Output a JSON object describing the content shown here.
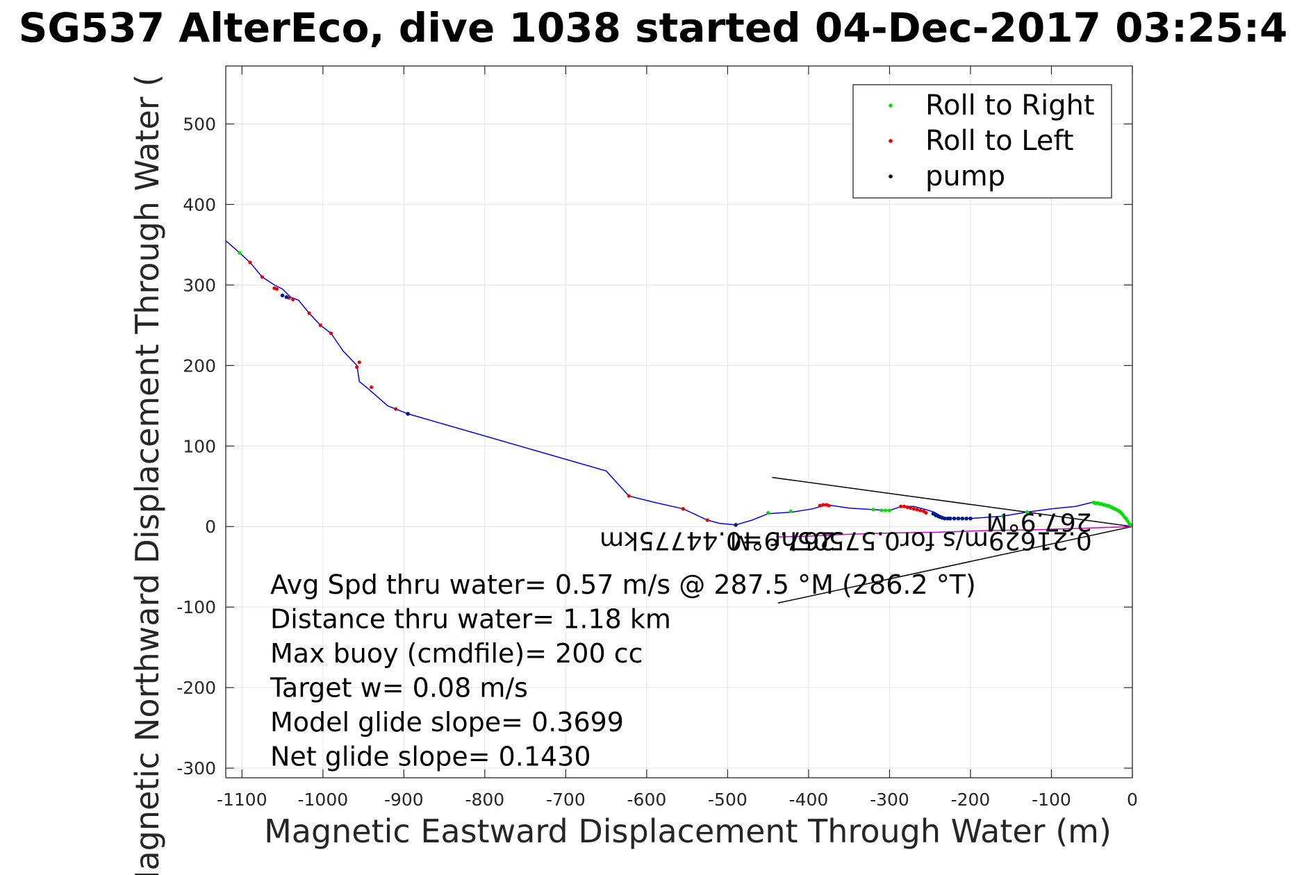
{
  "chart_data": {
    "type": "line",
    "title": "SG537 AlterEco, dive 1038 started 04-Dec-2017 03:25:4",
    "xlabel": "Magnetic Eastward Displacement Through Water (m)",
    "ylabel": "Magnetic Northward Displacement Through Water (",
    "xlim": [
      -1120,
      0
    ],
    "ylim": [
      -312,
      572
    ],
    "xticks": [
      -1100,
      -1000,
      -900,
      -800,
      -700,
      -600,
      -500,
      -400,
      -300,
      -200,
      -100,
      0
    ],
    "xtick_labels": [
      "-1100",
      "-1000",
      "-900",
      "-800",
      "-700",
      "-600",
      "-500",
      "-400",
      "-300",
      "-200",
      "-100",
      "0"
    ],
    "yticks": [
      -300,
      -200,
      -100,
      0,
      100,
      200,
      300,
      400,
      500
    ],
    "ytick_labels": [
      "-300",
      "-200",
      "-100",
      "0",
      "100",
      "200",
      "300",
      "400",
      "500"
    ],
    "grid": true,
    "legend_position": "top-right",
    "legend": [
      {
        "label": "Roll to Right",
        "color": "#00dd00"
      },
      {
        "label": "Roll to Left",
        "color": "#ee0000"
      },
      {
        "label": "pump",
        "color": "#000000"
      }
    ],
    "track": {
      "color": "#0000ee",
      "x": [
        0,
        -8,
        -18,
        -30,
        -40,
        -50,
        -70,
        -100,
        -130,
        -160,
        -200,
        -220,
        -232,
        -238,
        -245,
        -255,
        -270,
        -285,
        -300,
        -320,
        -350,
        -378,
        -395,
        -420,
        -450,
        -470,
        -490,
        -510,
        -525,
        -540,
        -555,
        -590,
        -622,
        -650,
        -895,
        -920,
        -945,
        -955,
        -958,
        -975,
        -990,
        -1003,
        -1017,
        -1030,
        -1040,
        -1050,
        -1060,
        -1075,
        -1090,
        -1103,
        -1120
      ],
      "y": [
        0,
        10,
        20,
        25,
        28,
        30,
        25,
        22,
        18,
        13,
        10,
        10,
        11,
        14,
        18,
        21,
        25,
        25,
        20,
        21,
        23,
        27,
        22,
        18,
        16,
        8,
        2,
        4,
        8,
        15,
        22,
        30,
        38,
        69,
        140,
        150,
        172,
        180,
        200,
        218,
        240,
        250,
        265,
        281,
        285,
        295,
        300,
        310,
        328,
        340,
        355
      ]
    },
    "return_track": {
      "color": "#cc00cc",
      "x": [
        0,
        -60,
        -120,
        -180,
        -240,
        -300,
        -360,
        -400,
        -440
      ],
      "y": [
        0,
        -2,
        -4,
        -5,
        -7,
        -8,
        -10,
        -12,
        -13
      ]
    },
    "roll_to_right_points": {
      "x": [
        -2,
        -4,
        -6,
        -8,
        -10,
        -12,
        -14,
        -16,
        -18,
        -20,
        -22,
        -24,
        -26,
        -28,
        -30,
        -32,
        -34,
        -36,
        -38,
        -40,
        -42,
        -44,
        -46,
        -48,
        -130,
        -160,
        -300,
        -305,
        -310,
        -320,
        -422,
        -450,
        -1090,
        -1103
      ],
      "y": [
        2,
        4,
        7,
        10,
        12,
        15,
        17,
        19,
        20,
        21,
        22,
        23,
        24,
        25,
        26,
        26,
        27,
        27,
        28,
        28,
        29,
        29,
        29,
        30,
        18,
        13,
        20,
        20,
        20,
        21,
        19,
        17,
        328,
        340
      ]
    },
    "roll_to_left_points": {
      "x": [
        -255,
        -258,
        -262,
        -266,
        -270,
        -274,
        -278,
        -282,
        -286,
        -375,
        -378,
        -382,
        -386,
        -525,
        -555,
        -622,
        -910,
        -940,
        -955,
        -958,
        -990,
        -1003,
        -1017,
        -1037,
        -1042,
        -1057,
        -1060,
        -1075,
        -1090
      ],
      "y": [
        17,
        19,
        20,
        21,
        22,
        23,
        24,
        25,
        25,
        26,
        27,
        27,
        26,
        8,
        22,
        38,
        146,
        173,
        204,
        198,
        240,
        250,
        265,
        282,
        284,
        295,
        296,
        310,
        328
      ]
    },
    "pump_points": {
      "x": [
        -200,
        -205,
        -210,
        -215,
        -220,
        -225,
        -228,
        -232,
        -235,
        -238,
        -240,
        -243,
        -246,
        -490,
        -895,
        -1045,
        -1050
      ],
      "y": [
        10,
        10,
        10,
        10,
        10,
        10,
        10,
        10,
        11,
        12,
        13,
        14,
        16,
        2,
        140,
        285,
        287
      ],
      "marker_color": "#001888"
    },
    "wedge_lines": [
      {
        "x": [
          0,
          -445
        ],
        "y": [
          0,
          61
        ]
      },
      {
        "x": [
          0,
          -438
        ],
        "y": [
          0,
          -95
        ]
      }
    ],
    "mirrored_labels": [
      {
        "text": "267.9°M",
        "x": -50,
        "y": 16
      },
      {
        "text": "0.21629m/s for0.57505hr =0.44775km",
        "x": -50,
        "y": -7
      },
      {
        "text": "267.9°M",
        "x": -367,
        "y": -7
      }
    ],
    "annotations": [
      "Avg Spd thru water=  0.57 m/s @ 287.5 °M (286.2 °T)",
      "Distance thru water=  1.18 km",
      "Max buoy (cmdfile)= 200 cc",
      "Target w= 0.08 m/s",
      "Model glide slope= 0.3699",
      "Net glide slope= 0.1430"
    ]
  }
}
